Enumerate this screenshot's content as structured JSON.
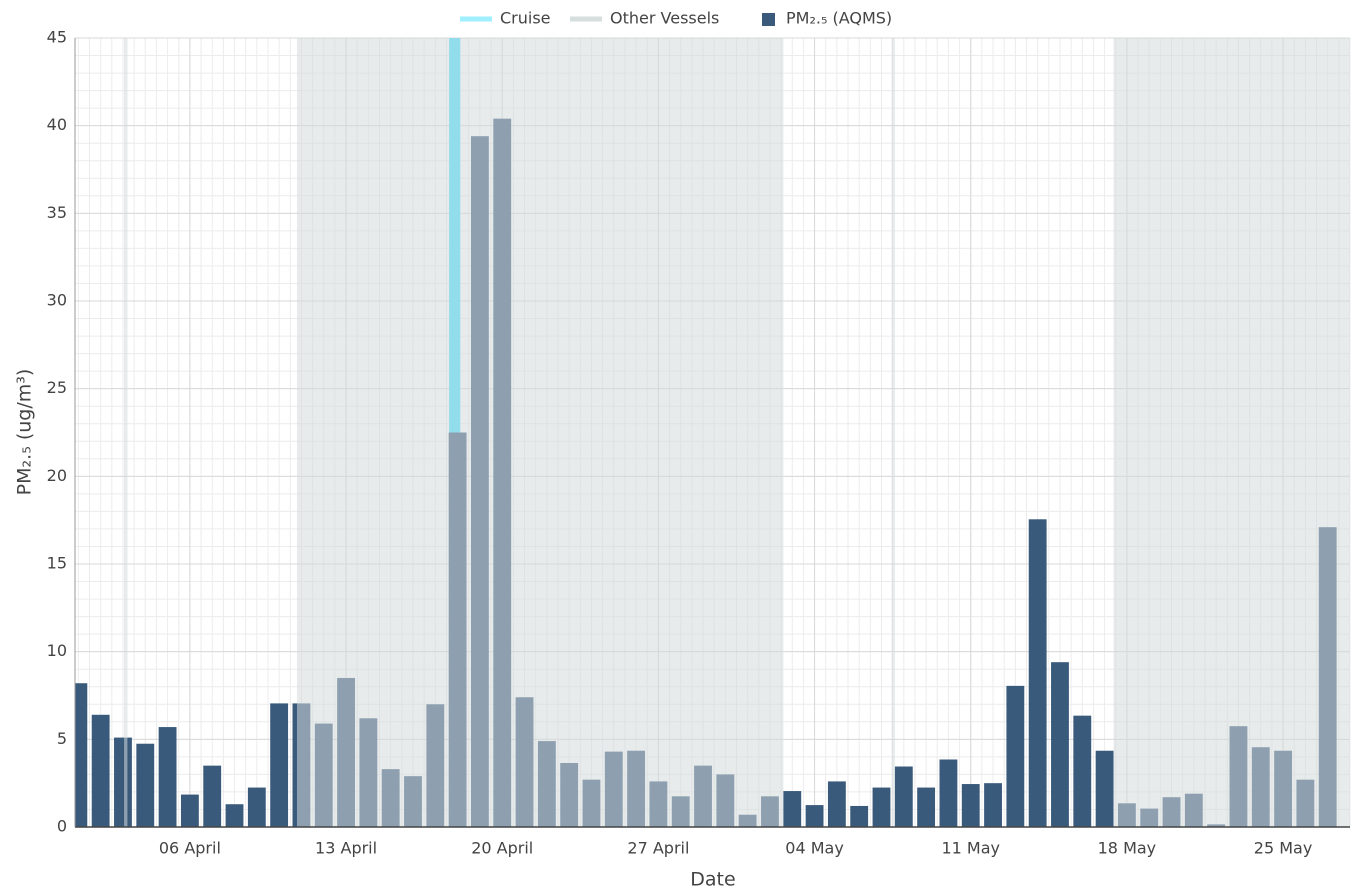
{
  "chart_data": {
    "type": "bar",
    "x_label": "Date",
    "y_label": "PM₂.₅ (ug/m³)",
    "categories": [
      null,
      null,
      null,
      null,
      null,
      "06 April",
      null,
      null,
      null,
      null,
      null,
      null,
      "13 April",
      null,
      null,
      null,
      null,
      null,
      null,
      "20 April",
      null,
      null,
      null,
      null,
      null,
      null,
      "27 April",
      null,
      null,
      null,
      null,
      null,
      null,
      "04 May",
      null,
      null,
      null,
      null,
      null,
      null,
      "11 May",
      null,
      null,
      null,
      null,
      null,
      null,
      "18 May",
      null,
      null,
      null,
      null,
      null,
      null,
      "25 May",
      null,
      null
    ],
    "xlim": [
      -0.15,
      57.0
    ],
    "ylim": [
      0,
      45
    ],
    "yticks": [
      0,
      5,
      10,
      15,
      20,
      25,
      30,
      35,
      40,
      45
    ],
    "grid": true,
    "minor_grid": true,
    "legend": "top",
    "series": [
      {
        "name": "Cruise",
        "color": "#40e0ff",
        "spans": [
          [
            16.62,
            17.12
          ]
        ]
      },
      {
        "name": "Other Vessels",
        "color": "#d3dada",
        "spans": [
          [
            2.05,
            2.2
          ],
          [
            9.8,
            31.6
          ],
          [
            36.45,
            36.6
          ],
          [
            46.4,
            57.0
          ]
        ]
      },
      {
        "name": "PM₂.₅ (AQMS)",
        "color": "#3a5a7c",
        "values": [
          8.2,
          6.4,
          5.1,
          4.75,
          5.7,
          1.85,
          3.5,
          1.3,
          2.25,
          7.05,
          7.05,
          5.9,
          8.5,
          6.2,
          3.3,
          2.9,
          7.0,
          22.5,
          39.4,
          40.4,
          7.4,
          4.9,
          3.65,
          2.7,
          4.3,
          4.35,
          2.6,
          1.75,
          3.5,
          3.0,
          0.7,
          1.75,
          2.05,
          1.25,
          2.6,
          1.2,
          2.25,
          3.45,
          2.25,
          3.85,
          2.45,
          2.5,
          8.05,
          17.55,
          9.4,
          6.35,
          4.35,
          1.35,
          1.05,
          1.7,
          1.9,
          0.15,
          5.75,
          4.55,
          4.35,
          2.7,
          17.1
        ]
      }
    ]
  }
}
